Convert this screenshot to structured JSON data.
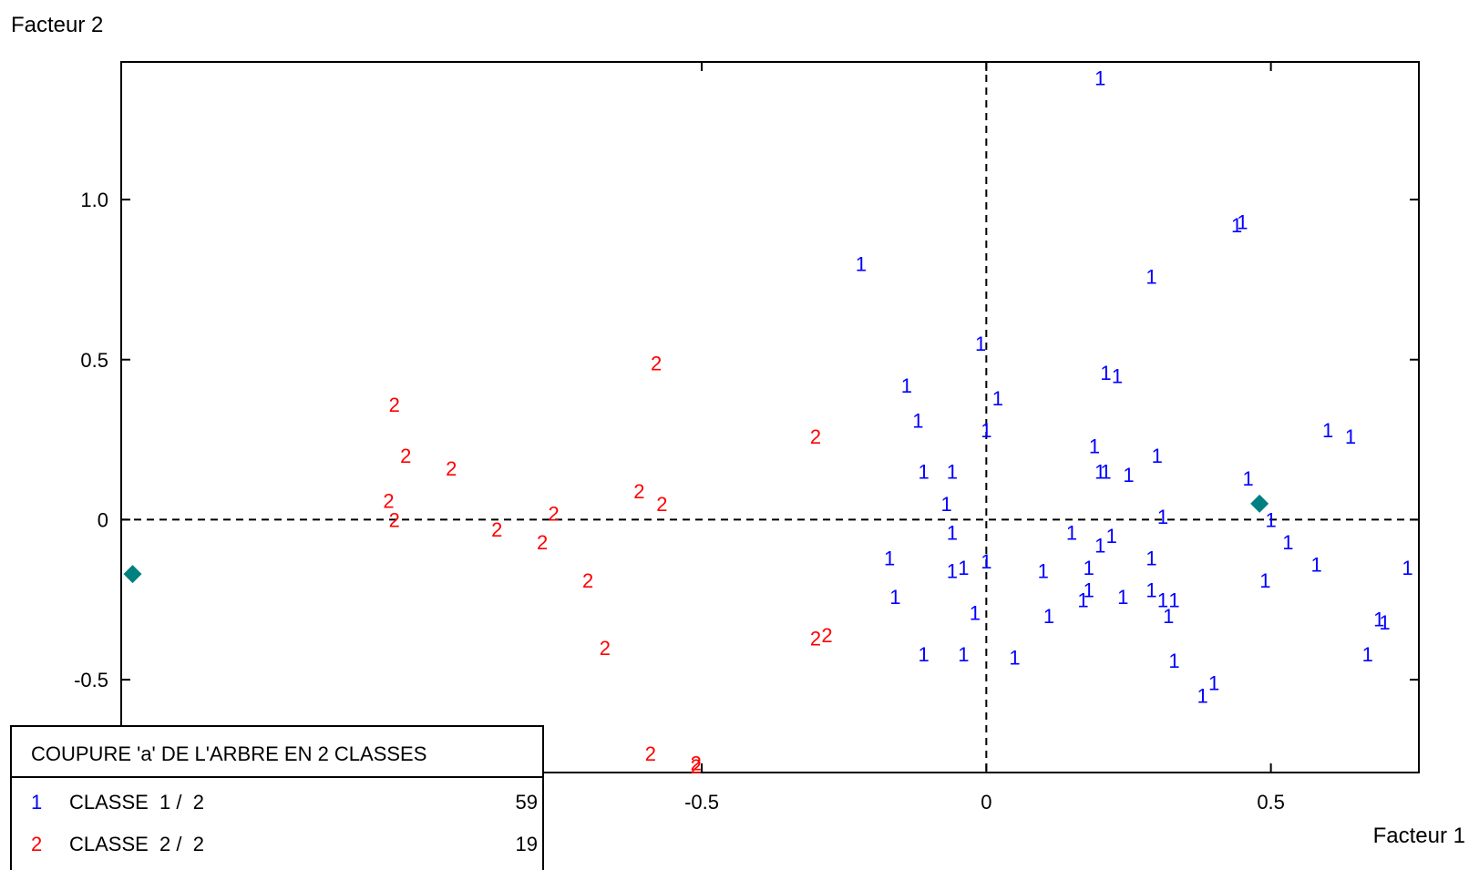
{
  "chart_data": {
    "type": "scatter",
    "xlabel": "Facteur 1",
    "ylabel": "Facteur 2",
    "xlim": [
      -1.52,
      0.76
    ],
    "ylim": [
      -0.79,
      1.43
    ],
    "xticks": [
      {
        "value": -0.5,
        "label": "-0.5"
      },
      {
        "value": 0,
        "label": "0"
      },
      {
        "value": 0.5,
        "label": "0.5"
      }
    ],
    "yticks": [
      {
        "value": 1.0,
        "label": "1.0"
      },
      {
        "value": 0.5,
        "label": "0.5"
      },
      {
        "value": 0,
        "label": "0"
      },
      {
        "value": -0.5,
        "label": "-0.5"
      }
    ],
    "reference_lines": {
      "x": 0,
      "y": 0,
      "style": "dashed"
    },
    "grid": false,
    "legend": {
      "title": "COUPURE 'a' DE L'ARBRE EN  2 CLASSES",
      "placement": "bottom-left",
      "entries": [
        {
          "marker": "1",
          "label": "CLASSE  1 /  2",
          "count": "59",
          "color": "#0000ff"
        },
        {
          "marker": "2",
          "label": "CLASSE  2 /  2",
          "count": "19",
          "color": "#ff0000"
        }
      ]
    },
    "centroid_color": "#008080",
    "centroids": [
      {
        "x": -1.5,
        "y": -0.17
      },
      {
        "x": 0.48,
        "y": 0.05
      }
    ],
    "series": [
      {
        "marker": "1",
        "color": "#0000ff",
        "points": [
          [
            0.2,
            1.38
          ],
          [
            0.44,
            0.92
          ],
          [
            0.45,
            0.93
          ],
          [
            -0.22,
            0.8
          ],
          [
            0.29,
            0.76
          ],
          [
            -0.01,
            0.55
          ],
          [
            0.21,
            0.46
          ],
          [
            0.23,
            0.45
          ],
          [
            -0.14,
            0.42
          ],
          [
            0.02,
            0.38
          ],
          [
            -0.12,
            0.31
          ],
          [
            0.0,
            0.28
          ],
          [
            0.6,
            0.28
          ],
          [
            0.64,
            0.26
          ],
          [
            0.19,
            0.23
          ],
          [
            0.3,
            0.2
          ],
          [
            -0.11,
            0.15
          ],
          [
            -0.06,
            0.15
          ],
          [
            0.2,
            0.15
          ],
          [
            0.21,
            0.15
          ],
          [
            0.25,
            0.14
          ],
          [
            0.46,
            0.13
          ],
          [
            -0.07,
            0.05
          ],
          [
            0.31,
            0.01
          ],
          [
            0.5,
            0.0
          ],
          [
            -0.06,
            -0.04
          ],
          [
            0.15,
            -0.04
          ],
          [
            0.22,
            -0.05
          ],
          [
            0.53,
            -0.07
          ],
          [
            0.2,
            -0.08
          ],
          [
            -0.17,
            -0.12
          ],
          [
            0.29,
            -0.12
          ],
          [
            0.0,
            -0.13
          ],
          [
            -0.06,
            -0.16
          ],
          [
            -0.04,
            -0.15
          ],
          [
            0.18,
            -0.15
          ],
          [
            0.1,
            -0.16
          ],
          [
            0.58,
            -0.14
          ],
          [
            0.74,
            -0.15
          ],
          [
            0.49,
            -0.19
          ],
          [
            0.18,
            -0.22
          ],
          [
            0.29,
            -0.22
          ],
          [
            -0.16,
            -0.24
          ],
          [
            0.17,
            -0.25
          ],
          [
            0.24,
            -0.24
          ],
          [
            0.31,
            -0.25
          ],
          [
            0.33,
            -0.25
          ],
          [
            -0.02,
            -0.29
          ],
          [
            0.11,
            -0.3
          ],
          [
            0.32,
            -0.3
          ],
          [
            0.69,
            -0.31
          ],
          [
            0.7,
            -0.32
          ],
          [
            -0.11,
            -0.42
          ],
          [
            -0.04,
            -0.42
          ],
          [
            0.05,
            -0.43
          ],
          [
            0.33,
            -0.44
          ],
          [
            0.67,
            -0.42
          ],
          [
            0.4,
            -0.51
          ],
          [
            0.38,
            -0.55
          ]
        ]
      },
      {
        "marker": "2",
        "color": "#ff0000",
        "points": [
          [
            -0.58,
            0.49
          ],
          [
            -1.04,
            0.36
          ],
          [
            -1.02,
            0.2
          ],
          [
            -0.94,
            0.16
          ],
          [
            -0.3,
            0.26
          ],
          [
            -0.61,
            0.09
          ],
          [
            -0.57,
            0.05
          ],
          [
            -1.05,
            0.06
          ],
          [
            -1.04,
            0.0
          ],
          [
            -0.76,
            0.02
          ],
          [
            -0.86,
            -0.03
          ],
          [
            -0.78,
            -0.07
          ],
          [
            -0.7,
            -0.19
          ],
          [
            -0.67,
            -0.4
          ],
          [
            -0.3,
            -0.37
          ],
          [
            -0.28,
            -0.36
          ],
          [
            -0.59,
            -0.73
          ],
          [
            -0.51,
            -0.76
          ],
          [
            -0.51,
            -0.77
          ]
        ]
      }
    ]
  }
}
